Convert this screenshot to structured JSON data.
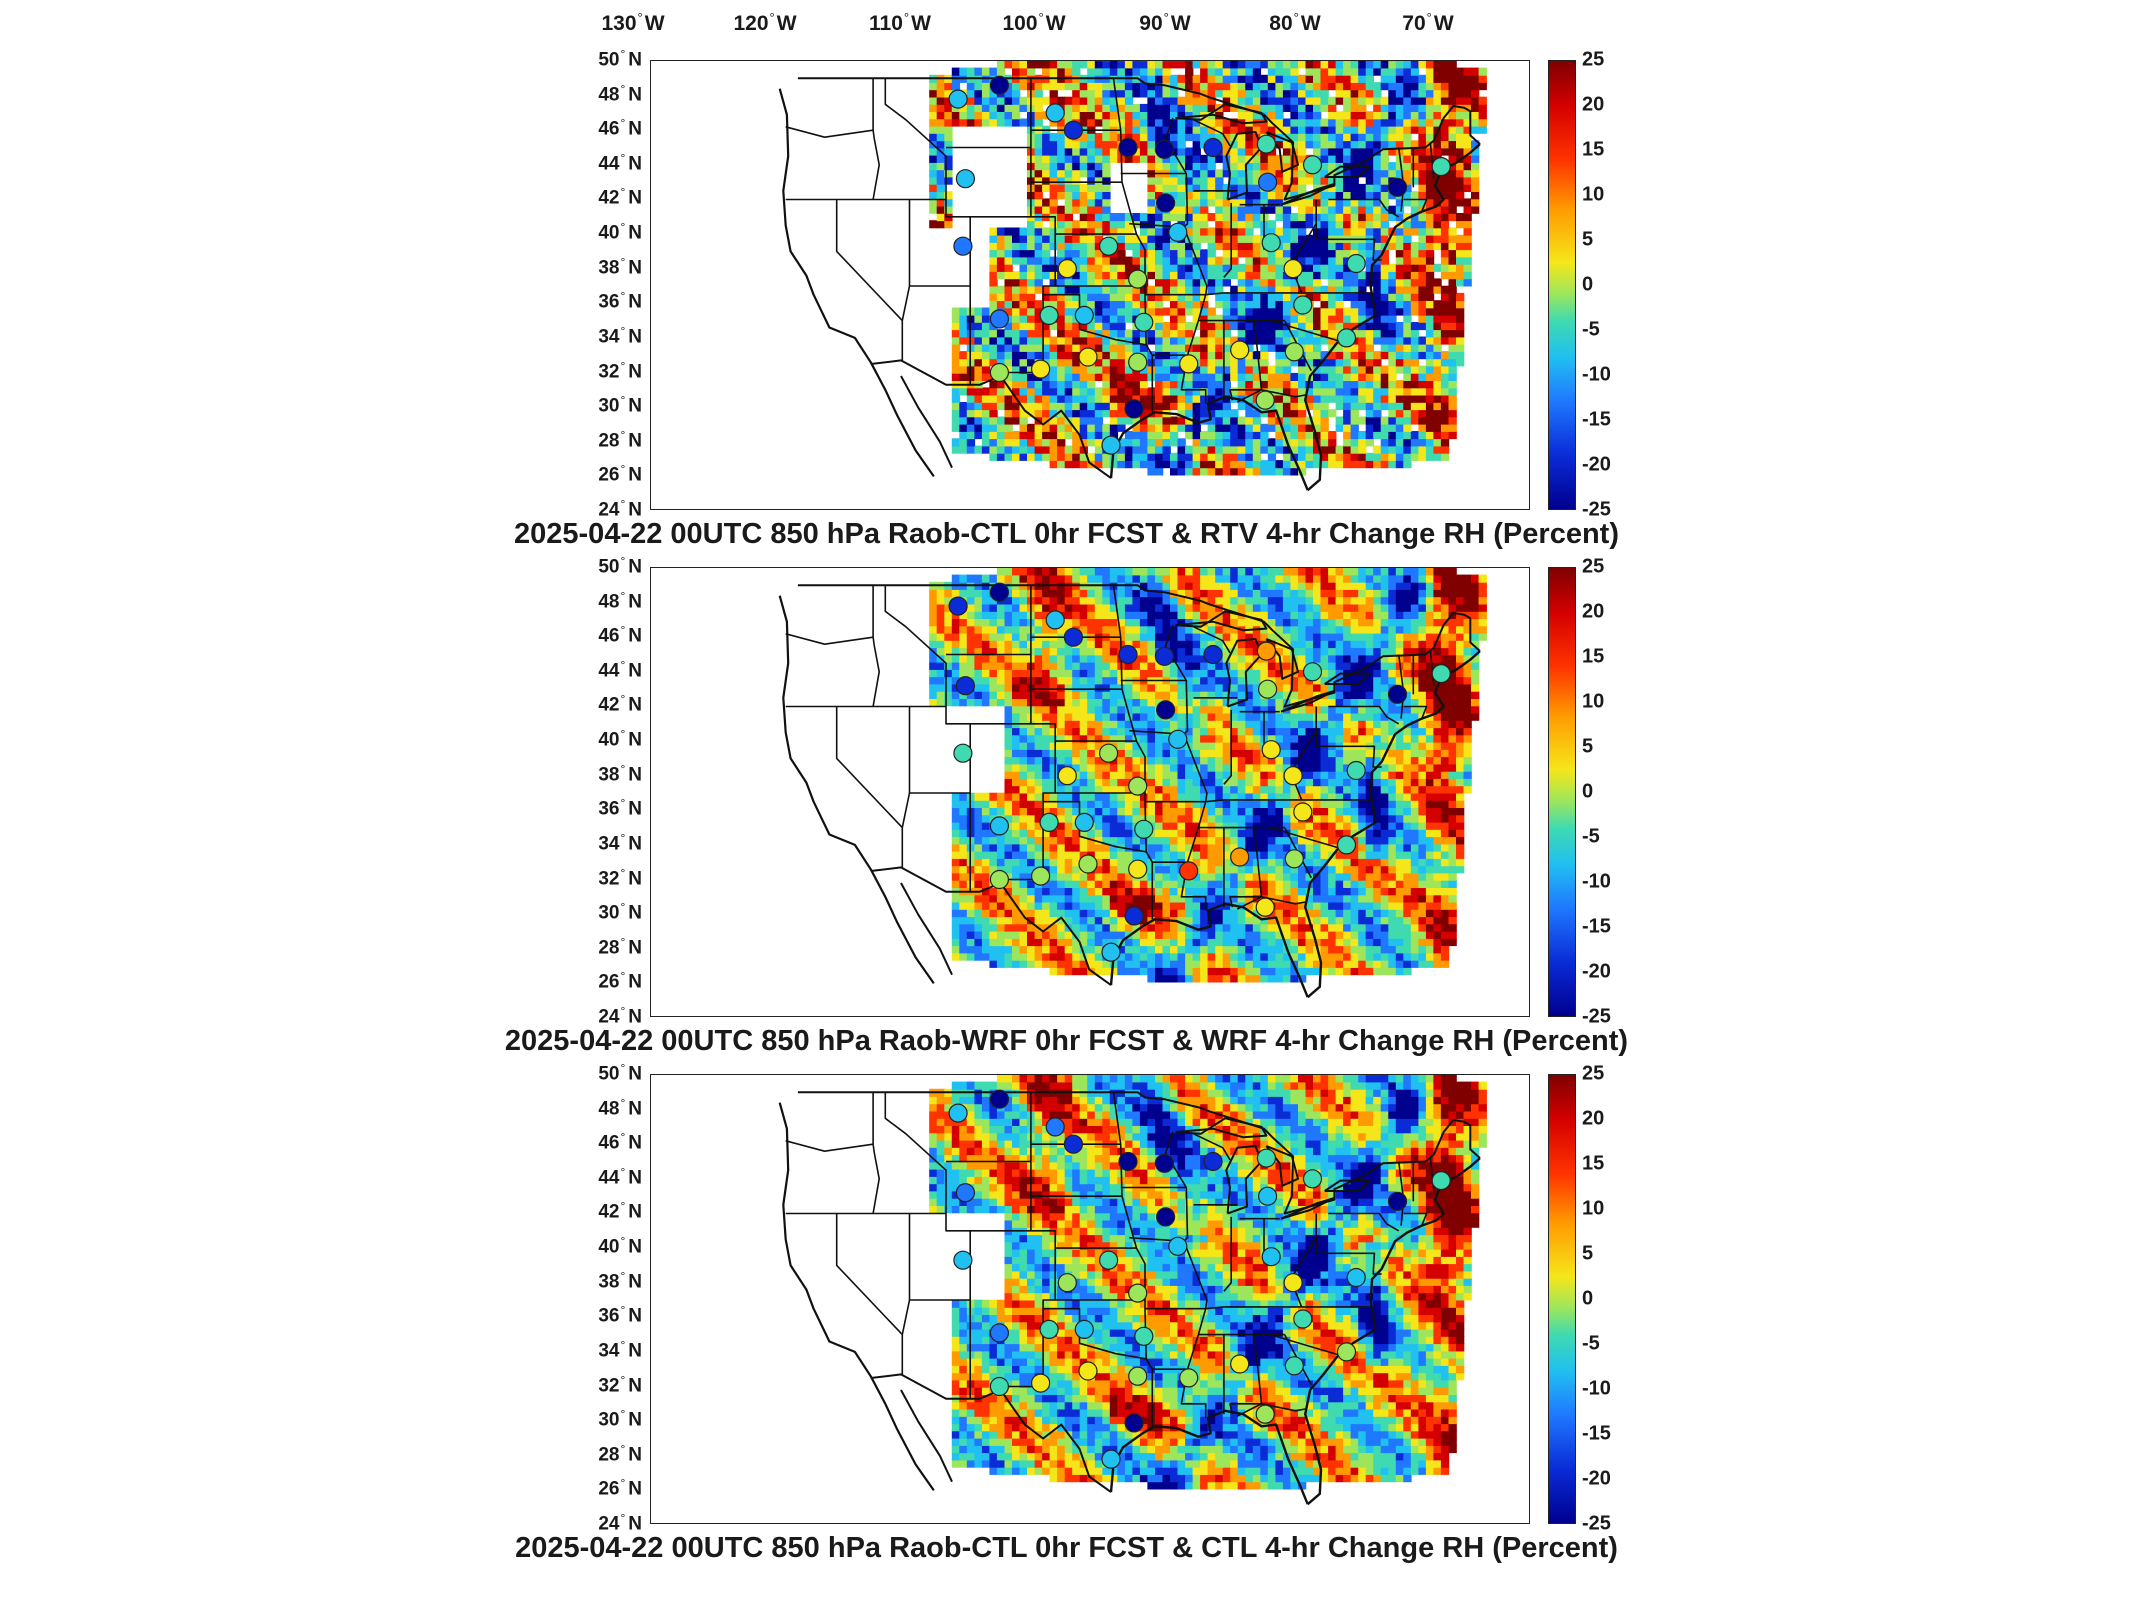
{
  "lon_ticks": [
    {
      "value": "130",
      "hem": "W"
    },
    {
      "value": "120",
      "hem": "W"
    },
    {
      "value": "110",
      "hem": "W"
    },
    {
      "value": "100",
      "hem": "W"
    },
    {
      "value": "90",
      "hem": "W"
    },
    {
      "value": "80",
      "hem": "W"
    },
    {
      "value": "70",
      "hem": "W"
    }
  ],
  "lat_ticks": [
    {
      "value": "50",
      "hem": "N"
    },
    {
      "value": "48",
      "hem": "N"
    },
    {
      "value": "46",
      "hem": "N"
    },
    {
      "value": "44",
      "hem": "N"
    },
    {
      "value": "42",
      "hem": "N"
    },
    {
      "value": "40",
      "hem": "N"
    },
    {
      "value": "38",
      "hem": "N"
    },
    {
      "value": "36",
      "hem": "N"
    },
    {
      "value": "34",
      "hem": "N"
    },
    {
      "value": "32",
      "hem": "N"
    },
    {
      "value": "30",
      "hem": "N"
    },
    {
      "value": "28",
      "hem": "N"
    },
    {
      "value": "26",
      "hem": "N"
    },
    {
      "value": "24",
      "hem": "N"
    }
  ],
  "colorbar": {
    "ticks": [
      "25",
      "20",
      "15",
      "10",
      "5",
      "0",
      "-5",
      "-10",
      "-15",
      "-20",
      "-25"
    ],
    "range": [
      -25,
      25
    ],
    "colors": [
      "#00008f",
      "#0a2bd6",
      "#1f78ff",
      "#20c0f0",
      "#3fdab0",
      "#9de65c",
      "#f5e61a",
      "#ff9a00",
      "#ff3300",
      "#d40000",
      "#800000"
    ]
  },
  "panels": [
    {
      "title": "2025-04-22 00UTC 850 hPa Raob-CTL 0hr FCST & RTV 4-hr Change RH (Percent)"
    },
    {
      "title": "2025-04-22 00UTC 850 hPa Raob-WRF 0hr FCST & WRF 4-hr Change RH (Percent)"
    },
    {
      "title": "2025-04-22 00UTC 850 hPa Raob-CTL 0hr FCST & CTL 4-hr Change RH (Percent)"
    }
  ],
  "stations": [
    {
      "lon": -110.0,
      "lat": 47.8,
      "v": [
        -8,
        -22,
        -10
      ]
    },
    {
      "lon": -106.6,
      "lat": 48.6,
      "v": [
        -25,
        -25,
        -25
      ]
    },
    {
      "lon": -109.4,
      "lat": 43.2,
      "v": [
        -12,
        -20,
        -14
      ]
    },
    {
      "lon": -109.6,
      "lat": 39.3,
      "v": [
        -13,
        -7,
        -9
      ]
    },
    {
      "lon": -106.6,
      "lat": 35.1,
      "v": [
        -14,
        -12,
        -14
      ]
    },
    {
      "lon": -106.6,
      "lat": 32.0,
      "v": [
        2,
        0,
        -3
      ]
    },
    {
      "lon": -102.0,
      "lat": 47.0,
      "v": [
        -12,
        -10,
        -14
      ]
    },
    {
      "lon": -100.5,
      "lat": 46.0,
      "v": [
        -22,
        -22,
        -22
      ]
    },
    {
      "lon": -101.0,
      "lat": 38.0,
      "v": [
        3,
        3,
        1
      ]
    },
    {
      "lon": -102.5,
      "lat": 35.3,
      "v": [
        -6,
        -6,
        -6
      ]
    },
    {
      "lon": -103.2,
      "lat": 32.2,
      "v": [
        5,
        2,
        3
      ]
    },
    {
      "lon": -99.6,
      "lat": 35.3,
      "v": [
        -8,
        -10,
        -10
      ]
    },
    {
      "lon": -99.3,
      "lat": 32.9,
      "v": [
        3,
        -2,
        6
      ]
    },
    {
      "lon": -97.6,
      "lat": 39.3,
      "v": [
        -4,
        2,
        -5
      ]
    },
    {
      "lon": -96.0,
      "lat": 45.0,
      "v": [
        -25,
        -22,
        -25
      ]
    },
    {
      "lon": -95.2,
      "lat": 37.4,
      "v": [
        0,
        1,
        -1
      ]
    },
    {
      "lon": -94.7,
      "lat": 34.9,
      "v": [
        -5,
        -3,
        -7
      ]
    },
    {
      "lon": -95.2,
      "lat": 32.6,
      "v": [
        0,
        4,
        -2
      ]
    },
    {
      "lon": -95.5,
      "lat": 29.9,
      "v": [
        -24,
        -18,
        -25
      ]
    },
    {
      "lon": -97.4,
      "lat": 27.8,
      "v": [
        -8,
        -9,
        -10
      ]
    },
    {
      "lon": -93.0,
      "lat": 44.9,
      "v": [
        -25,
        -22,
        -25
      ]
    },
    {
      "lon": -92.9,
      "lat": 41.8,
      "v": [
        -25,
        -25,
        -25
      ]
    },
    {
      "lon": -91.9,
      "lat": 40.1,
      "v": [
        -10,
        -12,
        -8
      ]
    },
    {
      "lon": -91.0,
      "lat": 32.5,
      "v": [
        3,
        16,
        2
      ]
    },
    {
      "lon": -89.0,
      "lat": 45.0,
      "v": [
        -20,
        -20,
        -22
      ]
    },
    {
      "lon": -86.8,
      "lat": 33.3,
      "v": [
        6,
        9,
        5
      ]
    },
    {
      "lon": -84.6,
      "lat": 45.2,
      "v": [
        -5,
        10,
        -6
      ]
    },
    {
      "lon": -84.5,
      "lat": 43.0,
      "v": [
        -14,
        2,
        -12
      ]
    },
    {
      "lon": -84.2,
      "lat": 39.5,
      "v": [
        -7,
        6,
        -10
      ]
    },
    {
      "lon": -82.4,
      "lat": 38.0,
      "v": [
        3,
        4,
        3
      ]
    },
    {
      "lon": -81.6,
      "lat": 35.9,
      "v": [
        -6,
        4,
        -5
      ]
    },
    {
      "lon": -82.3,
      "lat": 33.2,
      "v": [
        0,
        -2,
        -4
      ]
    },
    {
      "lon": -84.7,
      "lat": 30.4,
      "v": [
        2,
        3,
        0
      ]
    },
    {
      "lon": -80.8,
      "lat": 44.0,
      "v": [
        -5,
        -4,
        -6
      ]
    },
    {
      "lon": -77.2,
      "lat": 38.3,
      "v": [
        -6,
        -5,
        -8
      ]
    },
    {
      "lon": -73.8,
      "lat": 42.7,
      "v": [
        -23,
        -24,
        -24
      ]
    },
    {
      "lon": -70.2,
      "lat": 43.9,
      "v": [
        -6,
        -4,
        -7
      ]
    },
    {
      "lon": -78.0,
      "lat": 34.0,
      "v": [
        -3,
        -3,
        -2
      ]
    }
  ]
}
